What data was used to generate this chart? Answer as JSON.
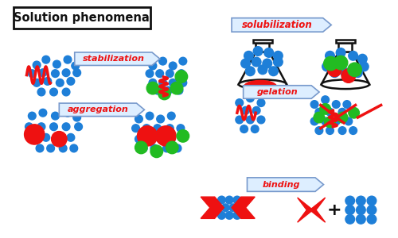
{
  "title": "Solution phenomena",
  "labels": {
    "stabilization": "stabilization",
    "aggregation": "aggregation",
    "solubilization": "solubilization",
    "gelation": "gelation",
    "binding": "binding"
  },
  "blue": "#1E7FD8",
  "green": "#22BB22",
  "red": "#EE1111",
  "arrow_fill": "#DDEEFF",
  "arrow_edge": "#7799CC",
  "black": "#111111",
  "white": "#FFFFFF"
}
